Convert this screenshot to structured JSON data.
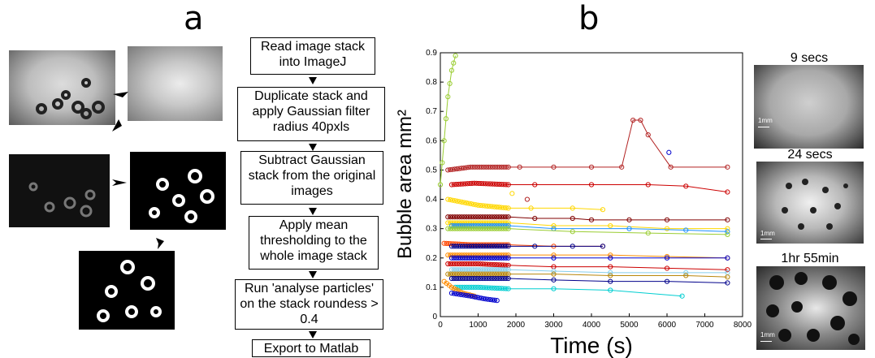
{
  "panel_a": {
    "letter": "a",
    "steps": [
      "Read image stack into ImageJ",
      "Duplicate stack and apply Gaussian filter radius 40pxls",
      "Subtract Gaussian stack from the original images",
      "Apply mean thresholding to the whole image stack",
      "Run 'analyse particles' on the stack roundess > 0.4",
      "Export to Matlab"
    ]
  },
  "panel_b": {
    "letter": "b",
    "thumbs": [
      {
        "caption": "9 secs",
        "scale": "1mm"
      },
      {
        "caption": "24 secs",
        "scale": "1mm"
      },
      {
        "caption": "1hr 55min",
        "scale": "1mm"
      }
    ]
  },
  "chart_data": {
    "type": "scatter",
    "xlabel": "Time (s)",
    "ylabel": "Bubble area mm²",
    "xlim": [
      0,
      8000
    ],
    "ylim": [
      0,
      0.9
    ],
    "xticks": [
      "0",
      "1000",
      "2000",
      "3000",
      "4000",
      "5000",
      "6000",
      "7000",
      "8000"
    ],
    "yticks": [
      "0",
      "0.1",
      "0.2",
      "0.3",
      "0.4",
      "0.5",
      "0.6",
      "0.7",
      "0.8",
      "0.9"
    ],
    "grid": false,
    "series": [
      {
        "color": "#9acd32",
        "x": [
          0,
          100,
          200,
          300,
          400
        ],
        "y": [
          0.45,
          0.6,
          0.75,
          0.84,
          0.89
        ]
      },
      {
        "color": "#b22222",
        "x": [
          200,
          800,
          1800,
          2100,
          3000,
          4000,
          4800,
          5100,
          5300,
          5500,
          6100,
          7600
        ],
        "y": [
          0.5,
          0.51,
          0.51,
          0.51,
          0.51,
          0.51,
          0.51,
          0.67,
          0.67,
          0.62,
          0.51,
          0.51
        ]
      },
      {
        "color": "#cc0000",
        "x": [
          300,
          900,
          1800,
          2500,
          4000,
          5500,
          6500,
          7600
        ],
        "y": [
          0.45,
          0.455,
          0.45,
          0.45,
          0.45,
          0.45,
          0.445,
          0.425
        ]
      },
      {
        "color": "#ffd700",
        "x": [
          200,
          1000,
          1800,
          2400,
          3500,
          4300
        ],
        "y": [
          0.4,
          0.38,
          0.37,
          0.37,
          0.37,
          0.365
        ]
      },
      {
        "color": "#800000",
        "x": [
          200,
          1000,
          1800,
          2500,
          3500,
          4000,
          5000,
          6000,
          7600
        ],
        "y": [
          0.34,
          0.34,
          0.34,
          0.335,
          0.335,
          0.33,
          0.33,
          0.33,
          0.33
        ]
      },
      {
        "color": "#ffd700",
        "x": [
          200,
          1000,
          1800,
          3000,
          4500,
          6000,
          7600
        ],
        "y": [
          0.32,
          0.32,
          0.32,
          0.31,
          0.31,
          0.3,
          0.3
        ]
      },
      {
        "color": "#1e90ff",
        "x": [
          300,
          1000,
          1800,
          3000,
          5000,
          6500,
          7600
        ],
        "y": [
          0.31,
          0.31,
          0.31,
          0.3,
          0.3,
          0.295,
          0.29
        ]
      },
      {
        "color": "#9acd32",
        "x": [
          200,
          1000,
          1800,
          3500,
          5500,
          7600
        ],
        "y": [
          0.3,
          0.3,
          0.3,
          0.29,
          0.285,
          0.28
        ]
      },
      {
        "color": "#ff4500",
        "x": [
          100,
          800,
          1800,
          3000,
          4300
        ],
        "y": [
          0.25,
          0.245,
          0.245,
          0.24,
          0.24
        ]
      },
      {
        "color": "#00008b",
        "x": [
          300,
          1000,
          1800,
          2500,
          3500,
          4300
        ],
        "y": [
          0.24,
          0.24,
          0.24,
          0.24,
          0.24,
          0.24
        ]
      },
      {
        "color": "#ff8c00",
        "x": [
          200,
          1000,
          1800,
          3000,
          4500,
          6000,
          7600
        ],
        "y": [
          0.21,
          0.21,
          0.21,
          0.21,
          0.21,
          0.205,
          0.2
        ]
      },
      {
        "color": "#0000cd",
        "x": [
          300,
          1000,
          1800,
          3000,
          4500,
          6000,
          7600
        ],
        "y": [
          0.2,
          0.2,
          0.2,
          0.2,
          0.2,
          0.2,
          0.2
        ]
      },
      {
        "color": "#cc0000",
        "x": [
          200,
          1000,
          1800,
          3000,
          4500,
          6000,
          7600
        ],
        "y": [
          0.18,
          0.18,
          0.175,
          0.17,
          0.17,
          0.165,
          0.16
        ]
      },
      {
        "color": "#87ceeb",
        "x": [
          300,
          1000,
          1800,
          3000,
          4500,
          6500,
          7600
        ],
        "y": [
          0.16,
          0.16,
          0.16,
          0.155,
          0.15,
          0.15,
          0.15
        ]
      },
      {
        "color": "#b8860b",
        "x": [
          200,
          1000,
          1800,
          3000,
          4500,
          6500,
          7600
        ],
        "y": [
          0.145,
          0.145,
          0.145,
          0.145,
          0.14,
          0.14,
          0.135
        ]
      },
      {
        "color": "#00008b",
        "x": [
          300,
          1000,
          1800,
          3000,
          4500,
          6000,
          7600
        ],
        "y": [
          0.13,
          0.13,
          0.13,
          0.125,
          0.12,
          0.12,
          0.115
        ]
      },
      {
        "color": "#00ced1",
        "x": [
          400,
          1000,
          1800,
          3000,
          4500,
          6400
        ],
        "y": [
          0.1,
          0.1,
          0.095,
          0.095,
          0.09,
          0.07
        ]
      },
      {
        "color": "#ff8c00",
        "x": [
          100,
          300,
          600,
          900
        ],
        "y": [
          0.12,
          0.1,
          0.08,
          0.07
        ]
      },
      {
        "color": "#0000cd",
        "x": [
          300,
          800,
          1200,
          1500
        ],
        "y": [
          0.08,
          0.07,
          0.06,
          0.055
        ]
      }
    ],
    "markers": [
      {
        "color": "#0000cd",
        "x": 6050,
        "y": 0.56
      },
      {
        "color": "#ffd700",
        "x": 1900,
        "y": 0.42
      },
      {
        "color": "#b22222",
        "x": 2300,
        "y": 0.4
      }
    ]
  }
}
